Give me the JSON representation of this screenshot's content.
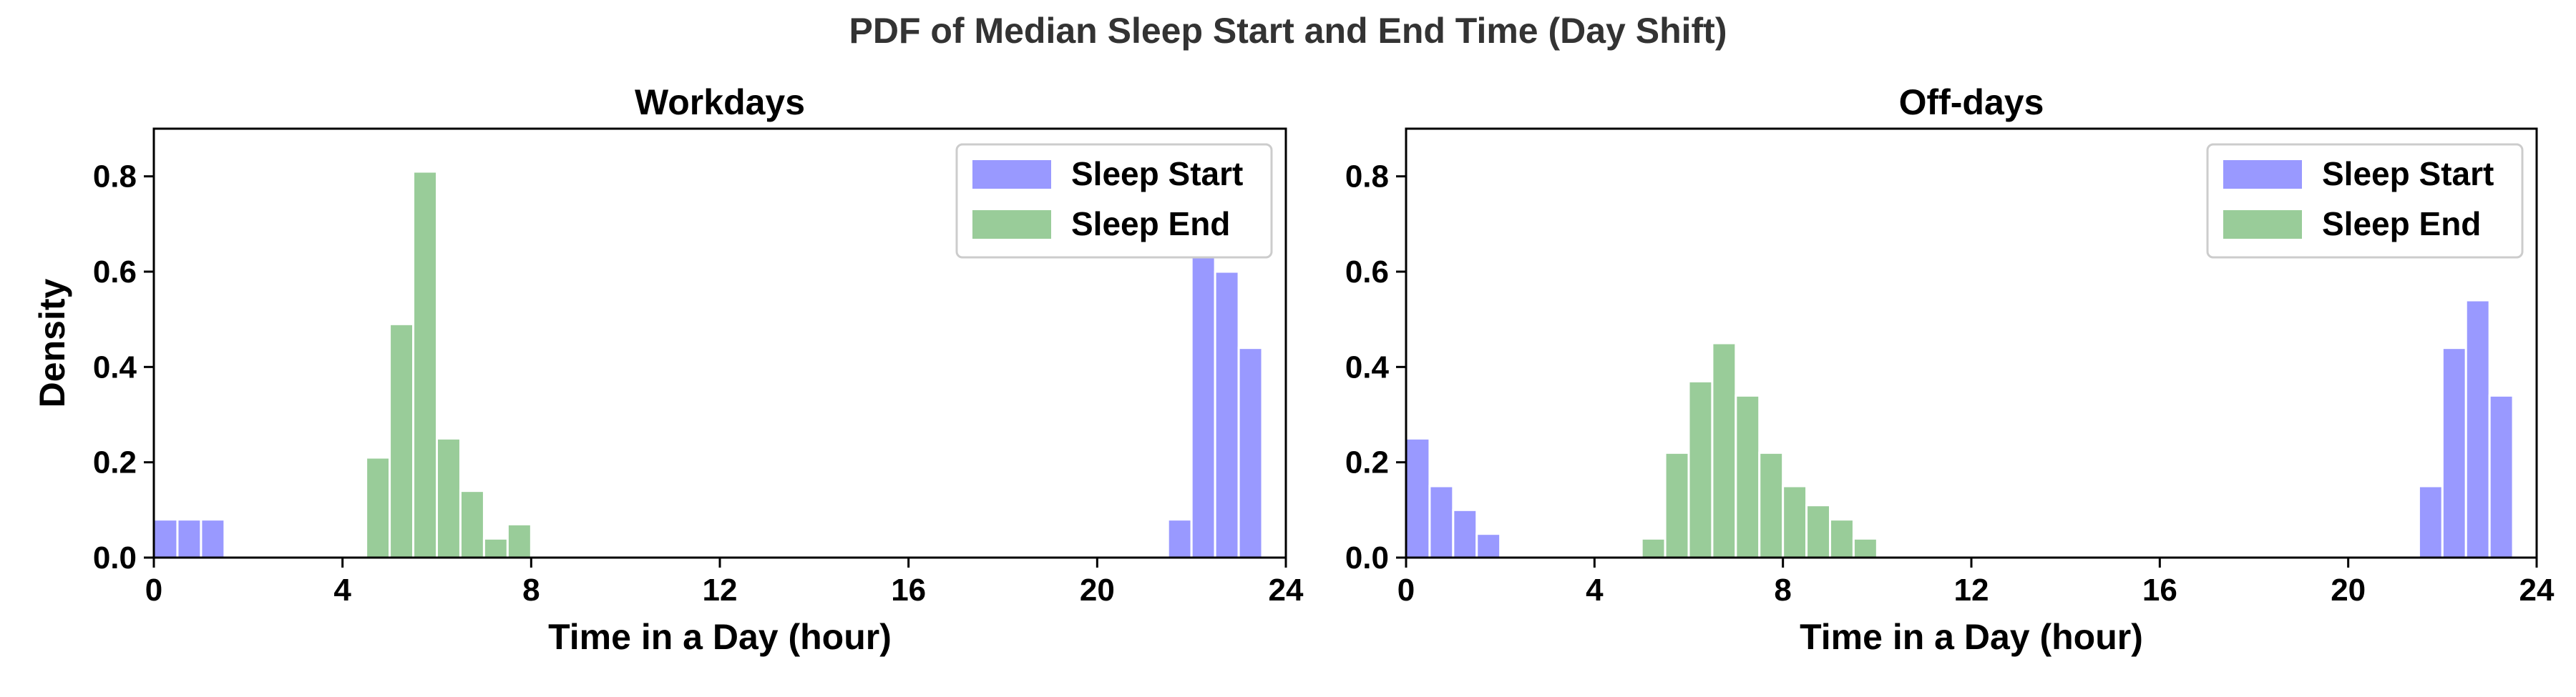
{
  "figure": {
    "title": "PDF of Median Sleep Start and End Time (Day Shift)"
  },
  "chart_data": [
    {
      "type": "bar",
      "title": "Workdays",
      "xlabel": "Time in a Day (hour)",
      "ylabel": "Density",
      "xlim": [
        0,
        24
      ],
      "ylim": [
        0,
        0.9
      ],
      "xticks": [
        0,
        4,
        8,
        12,
        16,
        20,
        24
      ],
      "yticks": [
        0.0,
        0.2,
        0.4,
        0.6,
        0.8
      ],
      "bin_width": 0.5,
      "grid": false,
      "legend_position": "top-right",
      "series": [
        {
          "name": "Sleep Start",
          "color": "#9999ff",
          "bins": [
            {
              "x": 0.0,
              "y": 0.08
            },
            {
              "x": 0.5,
              "y": 0.08
            },
            {
              "x": 1.0,
              "y": 0.08
            },
            {
              "x": 21.5,
              "y": 0.08
            },
            {
              "x": 22.0,
              "y": 0.63
            },
            {
              "x": 22.5,
              "y": 0.6
            },
            {
              "x": 23.0,
              "y": 0.44
            }
          ]
        },
        {
          "name": "Sleep End",
          "color": "#99cc99",
          "bins": [
            {
              "x": 4.5,
              "y": 0.21
            },
            {
              "x": 5.0,
              "y": 0.49
            },
            {
              "x": 5.5,
              "y": 0.81
            },
            {
              "x": 6.0,
              "y": 0.25
            },
            {
              "x": 6.5,
              "y": 0.14
            },
            {
              "x": 7.0,
              "y": 0.04
            },
            {
              "x": 7.5,
              "y": 0.07
            }
          ]
        }
      ]
    },
    {
      "type": "bar",
      "title": "Off-days",
      "xlabel": "Time in a Day (hour)",
      "ylabel": "",
      "xlim": [
        0,
        24
      ],
      "ylim": [
        0,
        0.9
      ],
      "xticks": [
        0,
        4,
        8,
        12,
        16,
        20,
        24
      ],
      "yticks": [
        0.0,
        0.2,
        0.4,
        0.6,
        0.8
      ],
      "bin_width": 0.5,
      "grid": false,
      "legend_position": "top-right",
      "series": [
        {
          "name": "Sleep Start",
          "color": "#9999ff",
          "bins": [
            {
              "x": 0.0,
              "y": 0.25
            },
            {
              "x": 0.5,
              "y": 0.15
            },
            {
              "x": 1.0,
              "y": 0.1
            },
            {
              "x": 1.5,
              "y": 0.05
            },
            {
              "x": 21.5,
              "y": 0.15
            },
            {
              "x": 22.0,
              "y": 0.44
            },
            {
              "x": 22.5,
              "y": 0.54
            },
            {
              "x": 23.0,
              "y": 0.34
            }
          ]
        },
        {
          "name": "Sleep End",
          "color": "#99cc99",
          "bins": [
            {
              "x": 5.0,
              "y": 0.04
            },
            {
              "x": 5.5,
              "y": 0.22
            },
            {
              "x": 6.0,
              "y": 0.37
            },
            {
              "x": 6.5,
              "y": 0.45
            },
            {
              "x": 7.0,
              "y": 0.34
            },
            {
              "x": 7.5,
              "y": 0.22
            },
            {
              "x": 8.0,
              "y": 0.15
            },
            {
              "x": 8.5,
              "y": 0.11
            },
            {
              "x": 9.0,
              "y": 0.08
            },
            {
              "x": 9.5,
              "y": 0.04
            }
          ]
        }
      ]
    }
  ]
}
